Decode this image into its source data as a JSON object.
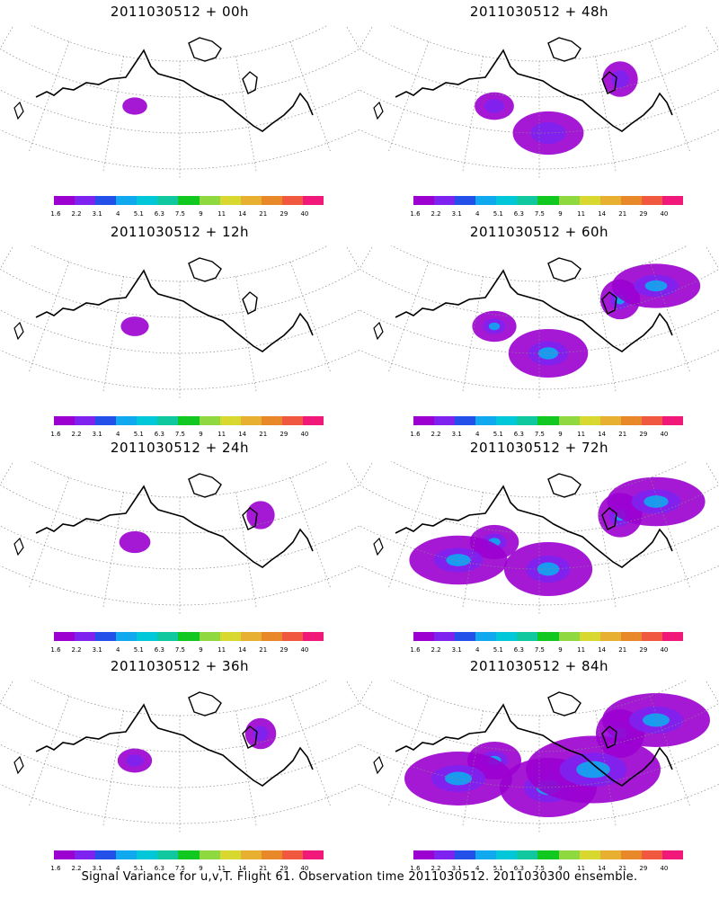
{
  "footer": "Signal Variance for u,v,T. Flight 61. Observation time 2011030512. 2011030300 ensemble.",
  "colorbar": {
    "colors": [
      "#9b00d0",
      "#7e22f0",
      "#2250e8",
      "#10a8ee",
      "#00c8d8",
      "#10c8a0",
      "#10c820",
      "#90d840",
      "#d8d830",
      "#e8b030",
      "#e88828",
      "#f05840",
      "#f01878"
    ],
    "ticks": [
      "1.6",
      "2.2",
      "3.1",
      "4",
      "5.1",
      "6.3",
      "7.5",
      "9",
      "11",
      "14",
      "21",
      "29",
      "40"
    ]
  },
  "panels": [
    {
      "title": "2011030512 + 00h",
      "intensity": 0.1
    },
    {
      "title": "2011030512 + 48h",
      "intensity": 0.55
    },
    {
      "title": "2011030512 + 12h",
      "intensity": 0.2
    },
    {
      "title": "2011030512 + 60h",
      "intensity": 0.7
    },
    {
      "title": "2011030512 + 24h",
      "intensity": 0.3
    },
    {
      "title": "2011030512 + 72h",
      "intensity": 0.85
    },
    {
      "title": "2011030512 + 36h",
      "intensity": 0.4
    },
    {
      "title": "2011030512 + 84h",
      "intensity": 1.0
    }
  ]
}
